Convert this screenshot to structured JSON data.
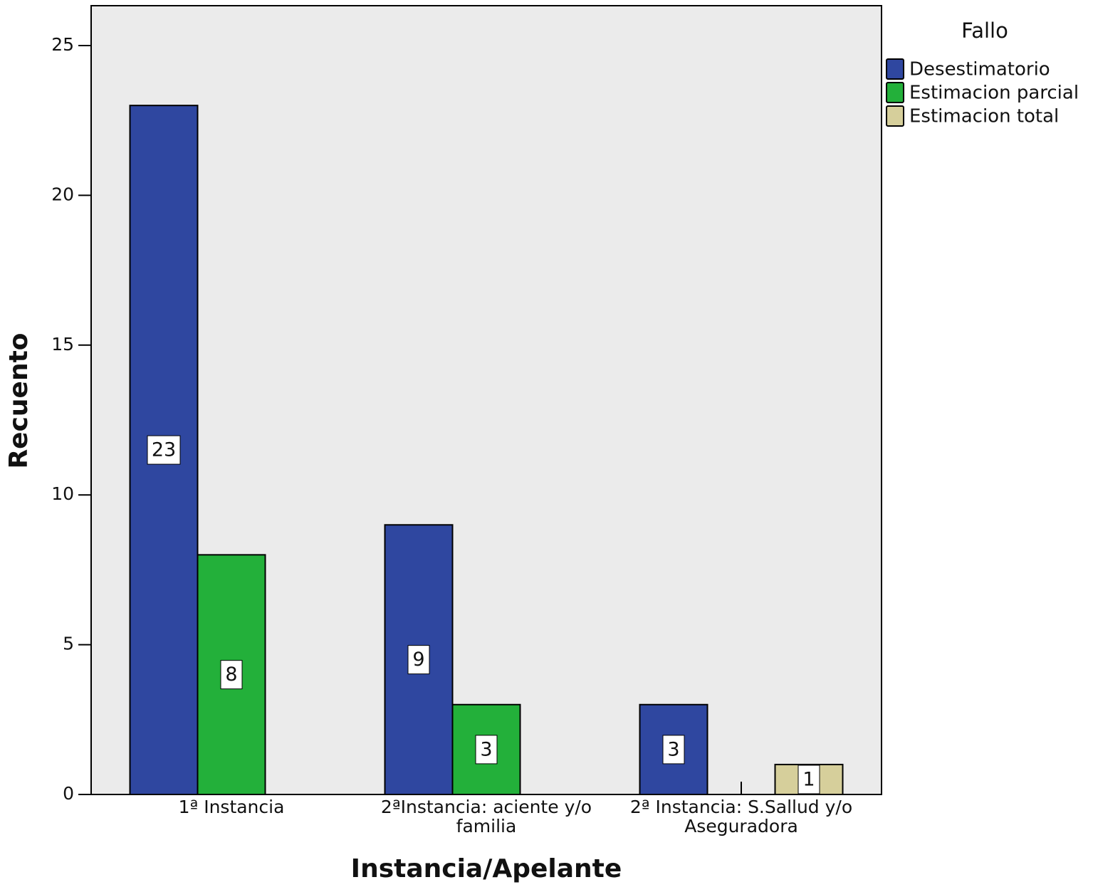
{
  "chart_data": {
    "type": "bar",
    "x_label": "Instancia/Apelante",
    "y_label": "Recuento",
    "legend_title": "Fallo",
    "legend_position": "right",
    "categories": [
      "1ª Instancia",
      "2ªInstancia: aciente y/o familia",
      "2ª Instancia: S.Sallud y/o Aseguradora"
    ],
    "series": [
      {
        "name": "Desestimatorio",
        "color": "#2f47a0",
        "values": [
          23,
          9,
          3
        ]
      },
      {
        "name": "Estimacion parcial",
        "color": "#23b03a",
        "values": [
          8,
          3,
          null
        ]
      },
      {
        "name": "Estimacion total",
        "color": "#d6cf9b",
        "values": [
          null,
          null,
          1
        ]
      }
    ],
    "ylim": [
      0,
      25
    ],
    "yticks": [
      0,
      5,
      10,
      15,
      20,
      25
    ],
    "grid": false
  }
}
